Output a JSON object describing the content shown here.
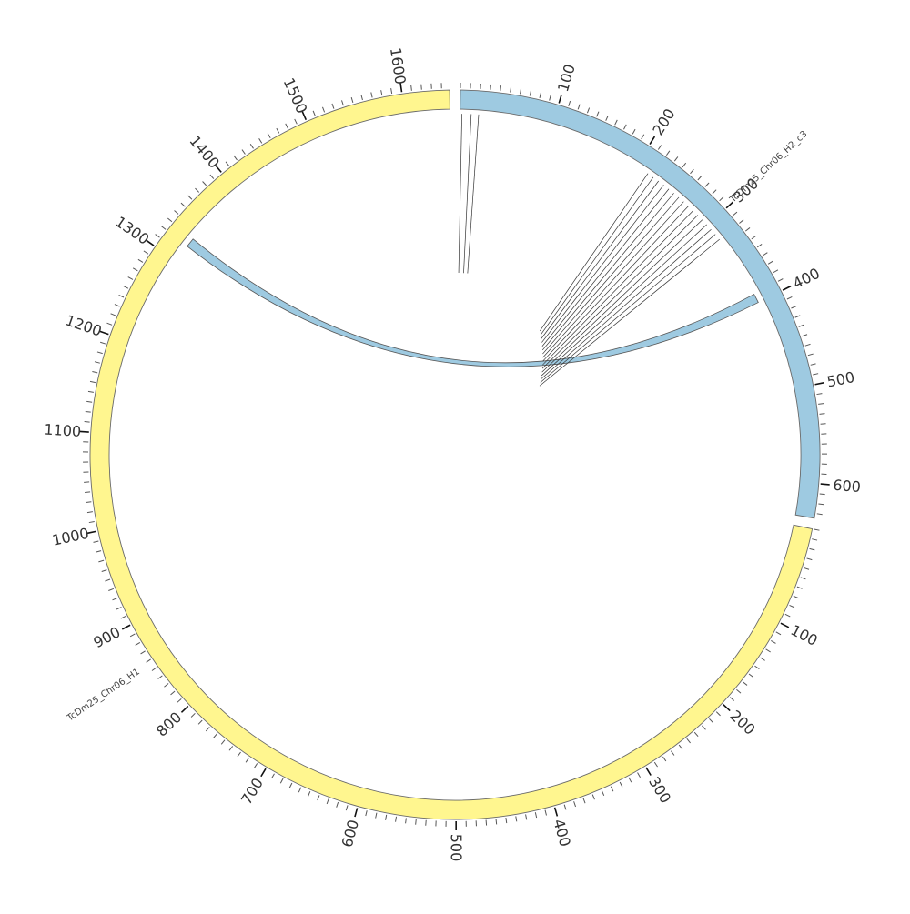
{
  "diagram": {
    "type": "circos",
    "unit_step_minor": 10,
    "unit_step_major": 100,
    "contigs": [
      {
        "name": "TcDm25_Chr06_H2_c3",
        "length": 635,
        "color": "#9ecae1",
        "major_ticks": [
          "100",
          "200",
          "300",
          "400",
          "500",
          "600"
        ]
      },
      {
        "name": "TcDm25_Chr06_H1",
        "length": 1648,
        "color": "#fff68f",
        "major_ticks": [
          "100",
          "200",
          "300",
          "400",
          "500",
          "600",
          "700",
          "800",
          "900",
          "1000",
          "1100",
          "1200",
          "1300",
          "1400",
          "1500",
          "1600"
        ]
      }
    ],
    "ribbon": {
      "from_contig": 0,
      "from_start": 390,
      "from_end": 400,
      "to_contig": 1,
      "to_start": 1320,
      "to_end": 1330,
      "color": "#9ecae1"
    },
    "link_groups": [
      {
        "contig": 0,
        "positions": [
          2,
          12,
          20
        ]
      },
      {
        "contig": 0,
        "positions": [
          215,
          222,
          229,
          236,
          243,
          250,
          257,
          264,
          271,
          278,
          285,
          292,
          299,
          306,
          313,
          320
        ]
      }
    ]
  }
}
